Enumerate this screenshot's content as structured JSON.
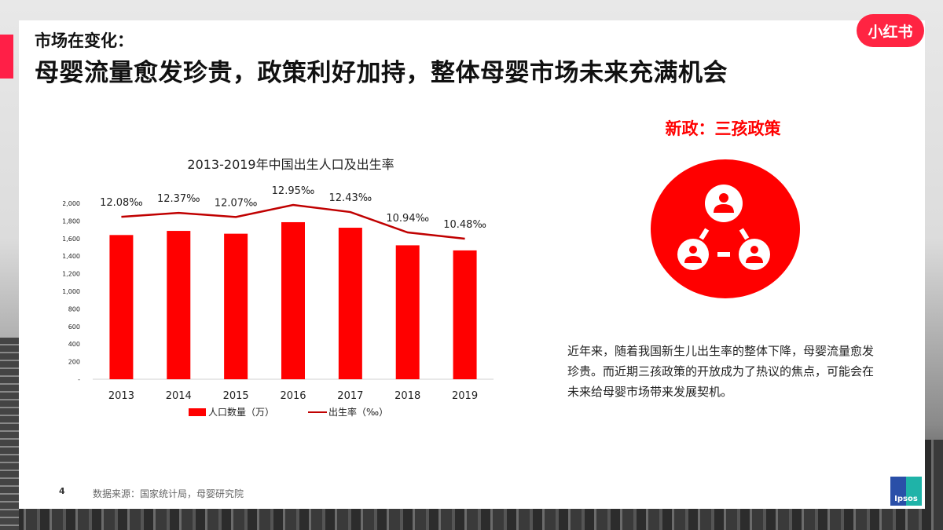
{
  "header": {
    "subtitle": "市场在变化：",
    "title": "母婴流量愈发珍贵，政策利好加持，整体母婴市场未来充满机会",
    "logo_text": "小红书"
  },
  "policy": {
    "title": "新政：三孩政策",
    "icon": "family-network-icon",
    "description": "近年来，随着我国新生儿出生率的整体下降，母婴流量愈发珍贵。而近期三孩政策的开放成为了热议的焦点，可能会在未来给母婴市场带来发展契机。"
  },
  "footer": {
    "page_number": "4",
    "source": "数据来源：国家统计局，母婴研究院",
    "partner_logo": "Ipsos"
  },
  "colors": {
    "accent": "#ff1f47",
    "bar": "#ff0000",
    "line": "#c00000",
    "brand": "#ff2442"
  },
  "chart_data": {
    "type": "bar",
    "title": "2013-2019年中国出生人口及出生率",
    "categories": [
      "2013",
      "2014",
      "2015",
      "2016",
      "2017",
      "2018",
      "2019"
    ],
    "series": [
      {
        "name": "人口数量（万）",
        "type": "bar",
        "values": [
          1640,
          1687,
          1655,
          1786,
          1723,
          1523,
          1465
        ]
      },
      {
        "name": "出生率（‰）",
        "type": "line",
        "values": [
          12.08,
          12.37,
          12.07,
          12.95,
          12.43,
          10.94,
          10.48
        ],
        "labels": [
          "12.08‰",
          "12.37‰",
          "12.07‰",
          "12.95‰",
          "12.43‰",
          "10.94‰",
          "10.48‰"
        ]
      }
    ],
    "yticks": [
      "-",
      "200",
      "400",
      "600",
      "800",
      "1,000",
      "1,200",
      "1,400",
      "1,600",
      "1,800",
      "2,000"
    ],
    "ylim": [
      0,
      2000
    ],
    "xlabel": "",
    "ylabel": "",
    "grid": false,
    "legend_position": "bottom",
    "legend": [
      "人口数量（万）",
      "出生率（‰）"
    ]
  }
}
